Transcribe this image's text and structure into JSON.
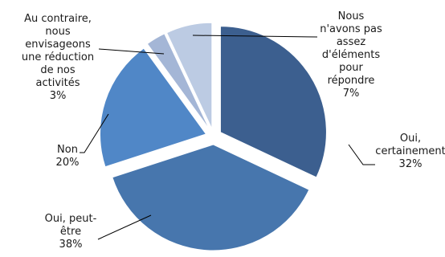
{
  "chart_data": {
    "type": "pie",
    "categories": [
      "Oui, certainement",
      "Oui, peut-être",
      "Non",
      "Au contraire, nous envisageons une réduction de nos activités",
      "Nous n'avons pas assez d'éléments pour répondre"
    ],
    "values": [
      32,
      38,
      20,
      3,
      7
    ],
    "unit": "%",
    "colors": [
      "#3c5f8f",
      "#4776ad",
      "#5087c7",
      "#a4b6d6",
      "#bccbe3"
    ],
    "labels": [
      {
        "lines": [
          "Oui,",
          "certainement",
          "32%"
        ]
      },
      {
        "lines": [
          "Oui, peut-",
          "être",
          "38%"
        ]
      },
      {
        "lines": [
          "Non",
          "20%"
        ]
      },
      {
        "lines": [
          "Au contraire,",
          "nous",
          "envisageons",
          "une réduction",
          "de nos",
          "activités",
          "3%"
        ]
      },
      {
        "lines": [
          "Nous",
          "n'avons pas",
          "assez",
          "d'éléments",
          "pour",
          "répondre",
          "7%"
        ]
      }
    ]
  }
}
